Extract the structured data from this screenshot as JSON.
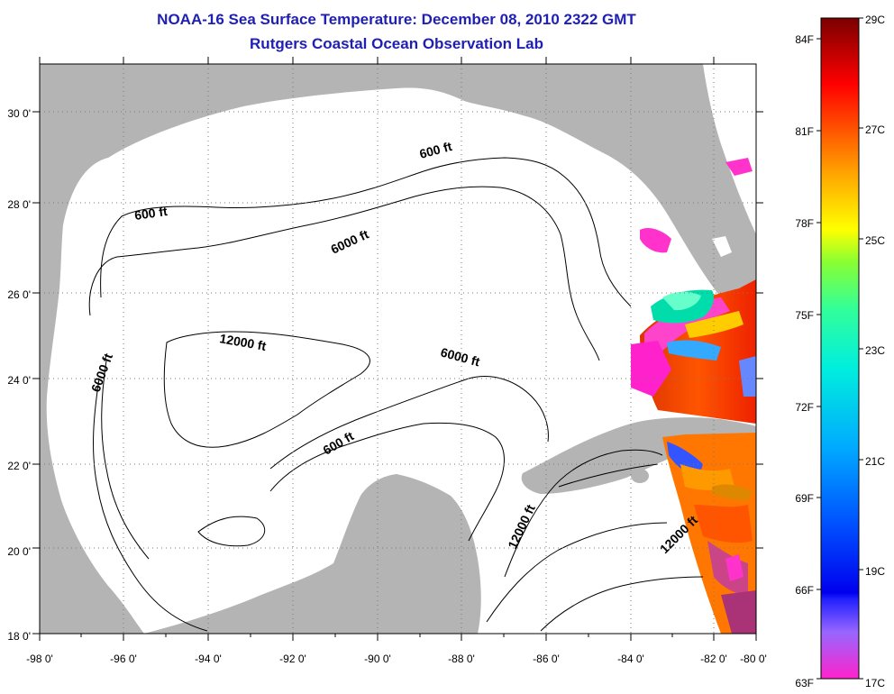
{
  "header": {
    "title": "NOAA-16 Sea Surface Temperature:  December 08, 2010 2322 GMT",
    "subtitle": "Rutgers Coastal Ocean Observation Lab"
  },
  "map": {
    "x_ticks": [
      "-98 0'",
      "-96 0'",
      "-94 0'",
      "-92 0'",
      "-90 0'",
      "-88 0'",
      "-86 0'",
      "-84 0'",
      "-82 0'",
      "-80 0'"
    ],
    "y_ticks": [
      "18 0'",
      "20 0'",
      "22 0'",
      "24 0'",
      "26 0'",
      "28 0'",
      "30 0'"
    ],
    "contour_labels": {
      "c600_nw": "600 ft",
      "c600_ne": "600 ft",
      "c6000_n": "6000 ft",
      "c6000_w": "6000 ft",
      "c12000_c": "12000 ft",
      "c6000_e": "6000 ft",
      "c600_s": "600 ft",
      "c12000_se": "12000 ft",
      "c12000_e": "12000 ft"
    },
    "colors": {
      "land": "#b4b4b4",
      "ocean": "#ffffff",
      "grid": "#7a7a7a"
    }
  },
  "colorbar": {
    "f_labels": [
      "84F",
      "81F",
      "78F",
      "75F",
      "72F",
      "69F",
      "66F",
      "63F"
    ],
    "c_labels": [
      "29C",
      "27C",
      "25C",
      "23C",
      "21C",
      "19C",
      "17C"
    ]
  }
}
